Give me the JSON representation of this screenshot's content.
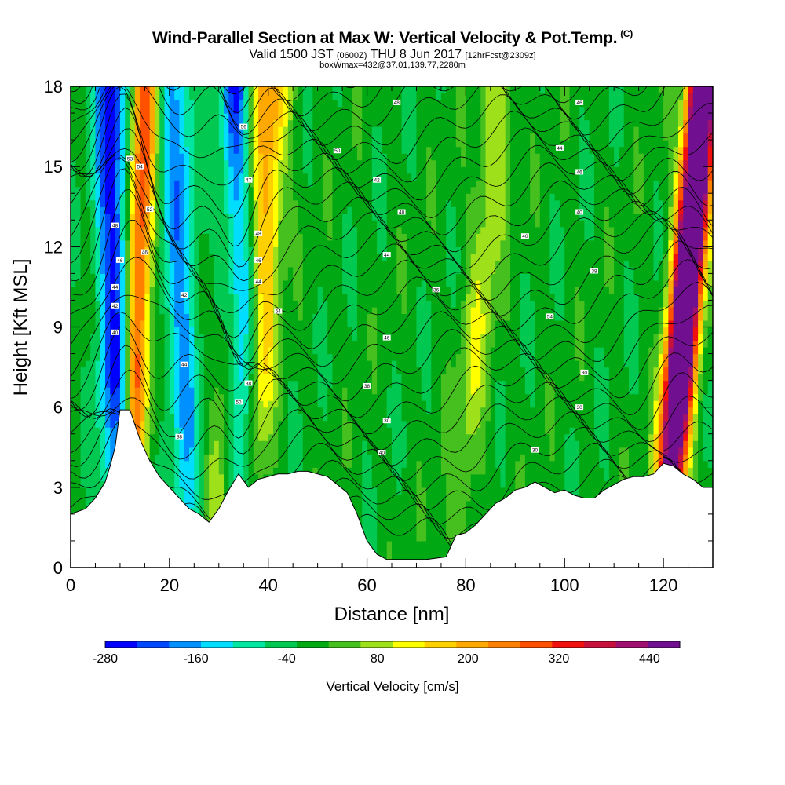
{
  "title": {
    "main": "Wind-Parallel Section at Max W: Vertical Velocity & Pot.Temp.",
    "copyright": "(C)",
    "valid_prefix": "Valid 1500 JST",
    "valid_utc": "(0600Z)",
    "valid_date": "THU 8 Jun 2017",
    "forecast": "[12hrFcst@2309z]",
    "boxmax": "boxWmax=432@37.01,139.77,2280m"
  },
  "chart_data": {
    "type": "heatmap",
    "xlabel": "Distance [nm]",
    "ylabel": "Height [Kft MSL]",
    "xlim": [
      0,
      130
    ],
    "ylim": [
      0,
      18
    ],
    "x_ticks": [
      0,
      20,
      40,
      60,
      80,
      100,
      120
    ],
    "y_ticks": [
      0,
      3,
      6,
      9,
      12,
      15,
      18
    ],
    "colorbar": {
      "label": "Vertical Velocity [cm/s]",
      "tick_labels": [
        "-280",
        "-160",
        "-40",
        "80",
        "200",
        "320",
        "440"
      ],
      "tick_values": [
        -280,
        -160,
        -40,
        80,
        200,
        320,
        440
      ],
      "range": [
        -280,
        480
      ],
      "colors": [
        "#0000ff",
        "#0048ff",
        "#0090ff",
        "#00ddff",
        "#00e5a0",
        "#00c850",
        "#00a814",
        "#46c01e",
        "#9ee01a",
        "#ffff00",
        "#ffd000",
        "#ffa800",
        "#ff8000",
        "#ff5000",
        "#f01010",
        "#c8103c",
        "#a01070",
        "#701090"
      ]
    },
    "terrain_kft": [
      [
        0,
        2.0
      ],
      [
        3,
        2.2
      ],
      [
        5,
        2.6
      ],
      [
        7,
        3.2
      ],
      [
        8,
        3.8
      ],
      [
        9,
        4.5
      ],
      [
        10,
        5.9
      ],
      [
        12,
        5.9
      ],
      [
        14,
        4.8
      ],
      [
        16,
        4.0
      ],
      [
        18,
        3.4
      ],
      [
        20,
        3.0
      ],
      [
        22,
        2.6
      ],
      [
        24,
        2.2
      ],
      [
        26,
        2.0
      ],
      [
        28,
        1.7
      ],
      [
        30,
        2.2
      ],
      [
        32,
        2.9
      ],
      [
        34,
        3.5
      ],
      [
        36,
        3.0
      ],
      [
        38,
        3.3
      ],
      [
        42,
        3.5
      ],
      [
        44,
        3.5
      ],
      [
        46,
        3.6
      ],
      [
        48,
        3.6
      ],
      [
        52,
        3.4
      ],
      [
        56,
        2.8
      ],
      [
        58,
        2.0
      ],
      [
        60,
        1.0
      ],
      [
        62,
        0.5
      ],
      [
        64,
        0.3
      ],
      [
        68,
        0.3
      ],
      [
        72,
        0.3
      ],
      [
        76,
        0.4
      ],
      [
        78,
        1.2
      ],
      [
        80,
        1.3
      ],
      [
        82,
        1.6
      ],
      [
        84,
        2.0
      ],
      [
        86,
        2.4
      ],
      [
        88,
        2.6
      ],
      [
        90,
        2.9
      ],
      [
        92,
        3.0
      ],
      [
        94,
        3.2
      ],
      [
        96,
        3.0
      ],
      [
        98,
        2.8
      ],
      [
        100,
        2.9
      ],
      [
        102,
        2.7
      ],
      [
        104,
        2.6
      ],
      [
        106,
        2.6
      ],
      [
        108,
        2.9
      ],
      [
        110,
        3.1
      ],
      [
        112,
        3.3
      ],
      [
        114,
        3.4
      ],
      [
        116,
        3.4
      ],
      [
        118,
        3.5
      ],
      [
        120,
        3.9
      ],
      [
        122,
        3.8
      ],
      [
        124,
        3.5
      ],
      [
        126,
        3.3
      ],
      [
        128,
        3.0
      ],
      [
        130,
        3.0
      ]
    ],
    "updraft_cores": [
      {
        "x_base": 12,
        "x_top": 15,
        "w": 320
      },
      {
        "x_base": 36,
        "x_top": 41,
        "w": 200
      },
      {
        "x_base": 29,
        "x_top": 37,
        "w": 140
      },
      {
        "x_base": 78,
        "x_top": 87,
        "w": 100
      },
      {
        "x_base": 119,
        "x_top": 127,
        "w": 400
      },
      {
        "x_base": 121,
        "x_top": 129,
        "w": 440
      }
    ],
    "downdraft_cores": [
      {
        "x_base": 10,
        "x_top": 8,
        "w": -240
      },
      {
        "x_base": 35,
        "x_top": 34,
        "w": -280
      },
      {
        "x_base": 24,
        "x_top": 21,
        "w": -160
      }
    ],
    "contour_labels": [
      {
        "x": 10,
        "y": 11.5,
        "text": "46"
      },
      {
        "x": 12,
        "y": 15.3,
        "text": "53"
      },
      {
        "x": 14,
        "y": 15.0,
        "text": "54"
      },
      {
        "x": 35,
        "y": 16.5,
        "text": "56"
      },
      {
        "x": 36,
        "y": 14.5,
        "text": "47"
      },
      {
        "x": 54,
        "y": 15.6,
        "text": "50"
      },
      {
        "x": 66,
        "y": 17.4,
        "text": "48"
      },
      {
        "x": 62,
        "y": 14.5,
        "text": "42"
      },
      {
        "x": 67,
        "y": 13.3,
        "text": "40"
      },
      {
        "x": 64,
        "y": 11.7,
        "text": "44"
      },
      {
        "x": 74,
        "y": 10.4,
        "text": "36"
      },
      {
        "x": 64,
        "y": 8.6,
        "text": "46"
      },
      {
        "x": 60,
        "y": 6.8,
        "text": "38"
      },
      {
        "x": 64,
        "y": 5.5,
        "text": "30"
      },
      {
        "x": 63,
        "y": 4.3,
        "text": "40"
      },
      {
        "x": 92,
        "y": 12.4,
        "text": "40"
      },
      {
        "x": 99,
        "y": 15.7,
        "text": "44"
      },
      {
        "x": 103,
        "y": 14.8,
        "text": "46"
      },
      {
        "x": 103,
        "y": 13.3,
        "text": "40"
      },
      {
        "x": 103,
        "y": 17.4,
        "text": "46"
      },
      {
        "x": 106,
        "y": 11.1,
        "text": "38"
      },
      {
        "x": 97,
        "y": 9.4,
        "text": "54"
      },
      {
        "x": 104,
        "y": 7.3,
        "text": "30"
      },
      {
        "x": 103,
        "y": 6.0,
        "text": "30"
      },
      {
        "x": 94,
        "y": 4.4,
        "text": "30"
      },
      {
        "x": 23,
        "y": 7.6,
        "text": "44"
      },
      {
        "x": 22,
        "y": 4.9,
        "text": "38"
      },
      {
        "x": 36,
        "y": 6.9,
        "text": "38"
      },
      {
        "x": 34,
        "y": 6.2,
        "text": "50"
      },
      {
        "x": 42,
        "y": 9.6,
        "text": "54"
      },
      {
        "x": 38,
        "y": 12.5,
        "text": "48"
      },
      {
        "x": 38,
        "y": 11.5,
        "text": "46"
      },
      {
        "x": 38,
        "y": 10.7,
        "text": "44"
      },
      {
        "x": 9,
        "y": 10.5,
        "text": "44"
      },
      {
        "x": 9,
        "y": 9.8,
        "text": "42"
      },
      {
        "x": 9,
        "y": 8.8,
        "text": "40"
      },
      {
        "x": 9,
        "y": 12.8,
        "text": "48"
      },
      {
        "x": 16,
        "y": 13.4,
        "text": "52"
      },
      {
        "x": 15,
        "y": 11.8,
        "text": "46"
      },
      {
        "x": 23,
        "y": 10.2,
        "text": "42"
      }
    ]
  }
}
